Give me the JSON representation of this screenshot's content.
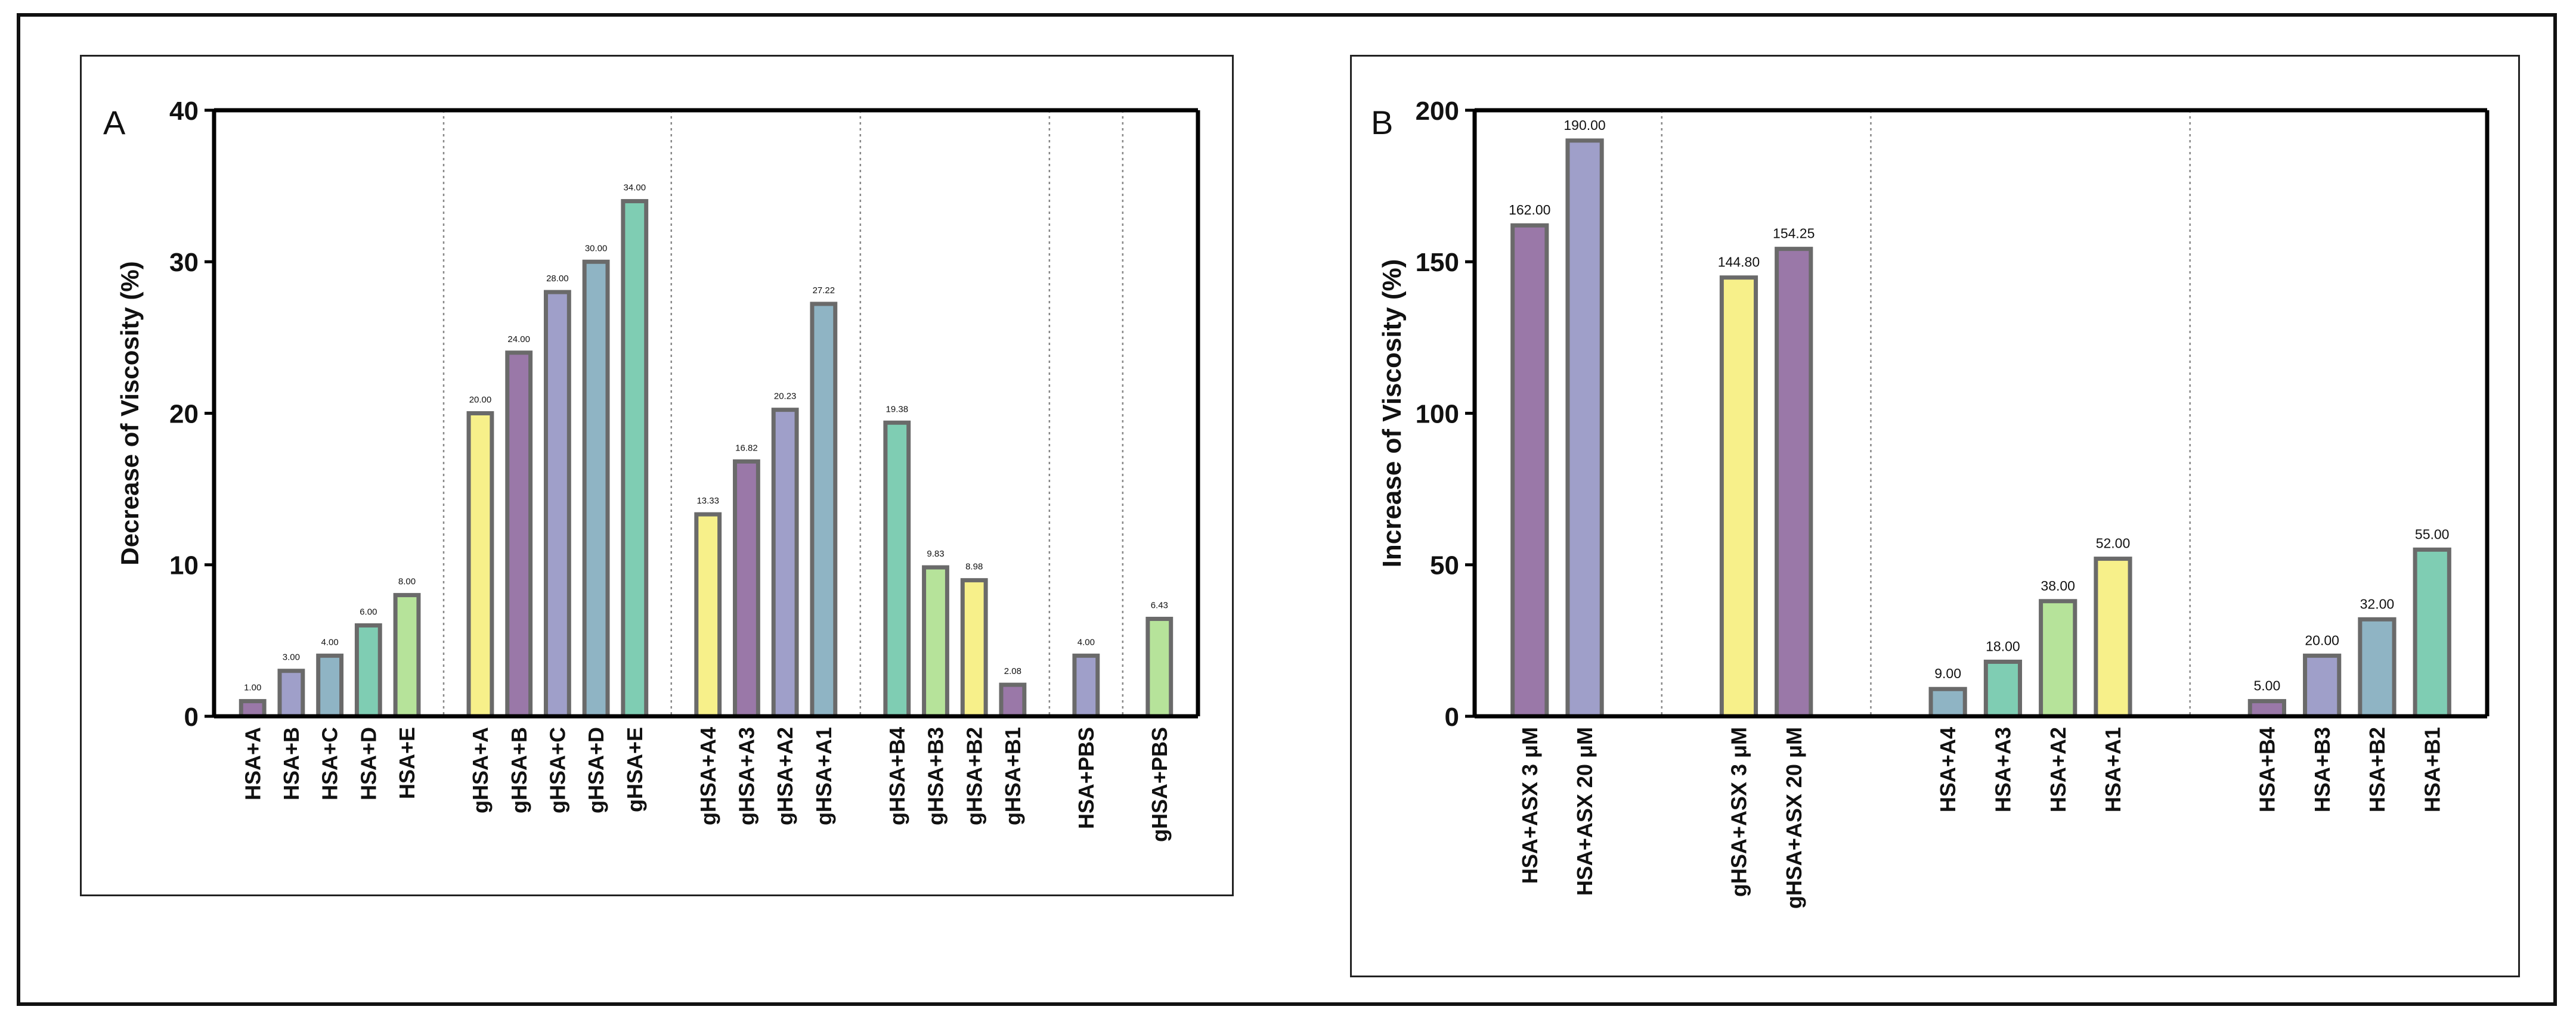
{
  "charts": [
    {
      "type": "bar",
      "panel_letter": "A",
      "ylabel": "Decrease of Viscosity (%)",
      "ylim": [
        0,
        40
      ],
      "yticks": [
        0,
        10,
        20,
        30,
        40
      ],
      "groups": [
        {
          "bars": [
            {
              "label": "HSA+A",
              "value": 1.0,
              "text": "1.00",
              "color": "#9A78A8"
            },
            {
              "label": "HSA+B",
              "value": 3.0,
              "text": "3.00",
              "color": "#9F9FC9"
            },
            {
              "label": "HSA+C",
              "value": 4.0,
              "text": "4.00",
              "color": "#8FB4C4"
            },
            {
              "label": "HSA+D",
              "value": 6.0,
              "text": "6.00",
              "color": "#7FCDB3"
            },
            {
              "label": "HSA+E",
              "value": 8.0,
              "text": "8.00",
              "color": "#B6E39A"
            }
          ]
        },
        {
          "bars": [
            {
              "label": "gHSA+A",
              "value": 20.0,
              "text": "20.00",
              "color": "#F7F08A"
            },
            {
              "label": "gHSA+B",
              "value": 24.0,
              "text": "24.00",
              "color": "#9A78A8"
            },
            {
              "label": "gHSA+C",
              "value": 28.0,
              "text": "28.00",
              "color": "#9F9FC9"
            },
            {
              "label": "gHSA+D",
              "value": 30.0,
              "text": "30.00",
              "color": "#8FB4C4"
            },
            {
              "label": "gHSA+E",
              "value": 34.0,
              "text": "34.00",
              "color": "#7FCDB3"
            }
          ]
        },
        {
          "bars": [
            {
              "label": "gHSA+A4",
              "value": 13.33,
              "text": "13.33",
              "color": "#F7F08A"
            },
            {
              "label": "gHSA+A3",
              "value": 16.82,
              "text": "16.82",
              "color": "#9A78A8"
            },
            {
              "label": "gHSA+A2",
              "value": 20.23,
              "text": "20.23",
              "color": "#9F9FC9"
            },
            {
              "label": "gHSA+A1",
              "value": 27.22,
              "text": "27.22",
              "color": "#8FB4C4"
            }
          ]
        },
        {
          "bars": [
            {
              "label": "gHSA+B4",
              "value": 19.38,
              "text": "19.38",
              "color": "#7FCDB3"
            },
            {
              "label": "gHSA+B3",
              "value": 9.83,
              "text": "9.83",
              "color": "#B6E39A"
            },
            {
              "label": "gHSA+B2",
              "value": 8.98,
              "text": "8.98",
              "color": "#F7F08A"
            },
            {
              "label": "gHSA+B1",
              "value": 2.08,
              "text": "2.08",
              "color": "#9A78A8"
            }
          ]
        },
        {
          "bars": [
            {
              "label": "HSA+PBS",
              "value": 4.0,
              "text": "4.00",
              "color": "#9F9FC9"
            }
          ]
        },
        {
          "bars": [
            {
              "label": "gHSA+PBS",
              "value": 6.43,
              "text": "6.43",
              "color": "#B6E39A"
            }
          ]
        }
      ]
    },
    {
      "type": "bar",
      "panel_letter": "B",
      "ylabel": "Increase of Viscosity (%)",
      "ylim": [
        0,
        200
      ],
      "yticks": [
        0,
        50,
        100,
        150,
        200
      ],
      "groups": [
        {
          "bars": [
            {
              "label": "HSA+ASX 3 μM",
              "value": 162.0,
              "text": "162.00",
              "color": "#9A78A8"
            },
            {
              "label": "HSA+ASX 20 μM",
              "value": 190.0,
              "text": "190.00",
              "color": "#9F9FC9"
            }
          ]
        },
        {
          "bars": [
            {
              "label": "gHSA+ASX 3 μM",
              "value": 144.8,
              "text": "144.80",
              "color": "#F7F08A"
            },
            {
              "label": "gHSA+ASX 20 μM",
              "value": 154.25,
              "text": "154.25",
              "color": "#9A78A8"
            }
          ]
        },
        {
          "bars": [
            {
              "label": "HSA+A4",
              "value": 9.0,
              "text": "9.00",
              "color": "#8FB4C4"
            },
            {
              "label": "HSA+A3",
              "value": 18.0,
              "text": "18.00",
              "color": "#7FCDB3"
            },
            {
              "label": "HSA+A2",
              "value": 38.0,
              "text": "38.00",
              "color": "#B6E39A"
            },
            {
              "label": "HSA+A1",
              "value": 52.0,
              "text": "52.00",
              "color": "#F7F08A"
            }
          ]
        },
        {
          "bars": [
            {
              "label": "HSA+B4",
              "value": 5.0,
              "text": "5.00",
              "color": "#9A78A8"
            },
            {
              "label": "HSA+B3",
              "value": 20.0,
              "text": "20.00",
              "color": "#9F9FC9"
            },
            {
              "label": "HSA+B2",
              "value": 32.0,
              "text": "32.00",
              "color": "#8FB4C4"
            },
            {
              "label": "HSA+B1",
              "value": 55.0,
              "text": "55.00",
              "color": "#7FCDB3"
            }
          ]
        }
      ]
    }
  ]
}
